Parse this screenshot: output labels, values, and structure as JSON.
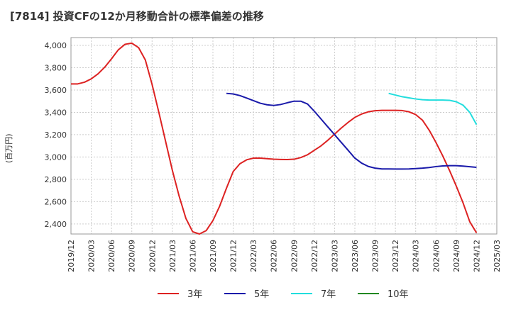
{
  "chart_data": {
    "type": "line",
    "title": "[7814]  投資CFの12か月移動合計の標準偏差の推移",
    "ylabel": "(百万円)",
    "xlabel": "",
    "x_ticks": [
      "2019/12",
      "2020/03",
      "2020/06",
      "2020/09",
      "2020/12",
      "2021/03",
      "2021/06",
      "2021/09",
      "2021/12",
      "2022/03",
      "2022/06",
      "2022/09",
      "2022/12",
      "2023/03",
      "2023/06",
      "2023/09",
      "2023/12",
      "2024/03",
      "2024/06",
      "2024/09",
      "2024/12",
      "2025/03"
    ],
    "y_ticks": [
      "2,400",
      "2,600",
      "2,800",
      "3,000",
      "3,200",
      "3,400",
      "3,600",
      "3,800",
      "4,000"
    ],
    "ylim": [
      2310,
      4070
    ],
    "xlim": [
      "2019/12",
      "2025/03"
    ],
    "grid": true,
    "legend_position": "bottom",
    "series": [
      {
        "name": "3年",
        "color": "#dd2222",
        "points": [
          [
            "2019/12",
            3655
          ],
          [
            "2020/01",
            3655
          ],
          [
            "2020/02",
            3670
          ],
          [
            "2020/03",
            3700
          ],
          [
            "2020/04",
            3745
          ],
          [
            "2020/05",
            3805
          ],
          [
            "2020/06",
            3880
          ],
          [
            "2020/07",
            3960
          ],
          [
            "2020/08",
            4010
          ],
          [
            "2020/09",
            4020
          ],
          [
            "2020/10",
            3980
          ],
          [
            "2020/11",
            3870
          ],
          [
            "2020/12",
            3650
          ],
          [
            "2021/01",
            3400
          ],
          [
            "2021/02",
            3140
          ],
          [
            "2021/03",
            2880
          ],
          [
            "2021/04",
            2650
          ],
          [
            "2021/05",
            2450
          ],
          [
            "2021/06",
            2330
          ],
          [
            "2021/07",
            2310
          ],
          [
            "2021/08",
            2340
          ],
          [
            "2021/09",
            2430
          ],
          [
            "2021/10",
            2560
          ],
          [
            "2021/11",
            2720
          ],
          [
            "2021/12",
            2870
          ],
          [
            "2022/01",
            2940
          ],
          [
            "2022/02",
            2975
          ],
          [
            "2022/03",
            2990
          ],
          [
            "2022/04",
            2990
          ],
          [
            "2022/05",
            2985
          ],
          [
            "2022/06",
            2980
          ],
          [
            "2022/07",
            2978
          ],
          [
            "2022/08",
            2977
          ],
          [
            "2022/09",
            2980
          ],
          [
            "2022/10",
            2995
          ],
          [
            "2022/11",
            3020
          ],
          [
            "2022/12",
            3060
          ],
          [
            "2023/01",
            3100
          ],
          [
            "2023/02",
            3150
          ],
          [
            "2023/03",
            3205
          ],
          [
            "2023/04",
            3260
          ],
          [
            "2023/05",
            3310
          ],
          [
            "2023/06",
            3355
          ],
          [
            "2023/07",
            3385
          ],
          [
            "2023/08",
            3405
          ],
          [
            "2023/09",
            3415
          ],
          [
            "2023/10",
            3418
          ],
          [
            "2023/11",
            3418
          ],
          [
            "2023/12",
            3418
          ],
          [
            "2024/01",
            3416
          ],
          [
            "2024/02",
            3405
          ],
          [
            "2024/03",
            3380
          ],
          [
            "2024/04",
            3330
          ],
          [
            "2024/05",
            3240
          ],
          [
            "2024/06",
            3130
          ],
          [
            "2024/07",
            3010
          ],
          [
            "2024/08",
            2880
          ],
          [
            "2024/09",
            2740
          ],
          [
            "2024/10",
            2590
          ],
          [
            "2024/11",
            2420
          ],
          [
            "2024/12",
            2320
          ]
        ]
      },
      {
        "name": "5年",
        "color": "#1a1aaa",
        "points": [
          [
            "2021/11",
            3570
          ],
          [
            "2021/12",
            3565
          ],
          [
            "2022/01",
            3550
          ],
          [
            "2022/02",
            3528
          ],
          [
            "2022/03",
            3505
          ],
          [
            "2022/04",
            3482
          ],
          [
            "2022/05",
            3468
          ],
          [
            "2022/06",
            3462
          ],
          [
            "2022/07",
            3470
          ],
          [
            "2022/08",
            3486
          ],
          [
            "2022/09",
            3500
          ],
          [
            "2022/10",
            3500
          ],
          [
            "2022/11",
            3475
          ],
          [
            "2022/12",
            3410
          ],
          [
            "2023/01",
            3340
          ],
          [
            "2023/02",
            3270
          ],
          [
            "2023/03",
            3200
          ],
          [
            "2023/04",
            3130
          ],
          [
            "2023/05",
            3060
          ],
          [
            "2023/06",
            2990
          ],
          [
            "2023/07",
            2945
          ],
          [
            "2023/08",
            2915
          ],
          [
            "2023/09",
            2900
          ],
          [
            "2023/10",
            2893
          ],
          [
            "2023/11",
            2893
          ],
          [
            "2023/12",
            2892
          ],
          [
            "2024/01",
            2892
          ],
          [
            "2024/02",
            2893
          ],
          [
            "2024/03",
            2896
          ],
          [
            "2024/04",
            2900
          ],
          [
            "2024/05",
            2906
          ],
          [
            "2024/06",
            2914
          ],
          [
            "2024/07",
            2920
          ],
          [
            "2024/08",
            2922
          ],
          [
            "2024/09",
            2922
          ],
          [
            "2024/10",
            2918
          ],
          [
            "2024/11",
            2913
          ],
          [
            "2024/12",
            2907
          ]
        ]
      },
      {
        "name": "7年",
        "color": "#22dddd",
        "points": [
          [
            "2023/11",
            3570
          ],
          [
            "2023/12",
            3555
          ],
          [
            "2024/01",
            3540
          ],
          [
            "2024/02",
            3530
          ],
          [
            "2024/03",
            3520
          ],
          [
            "2024/04",
            3513
          ],
          [
            "2024/05",
            3510
          ],
          [
            "2024/06",
            3510
          ],
          [
            "2024/07",
            3510
          ],
          [
            "2024/08",
            3508
          ],
          [
            "2024/09",
            3495
          ],
          [
            "2024/10",
            3465
          ],
          [
            "2024/11",
            3400
          ],
          [
            "2024/12",
            3290
          ]
        ]
      },
      {
        "name": "10年",
        "color": "#228822",
        "points": []
      }
    ]
  }
}
